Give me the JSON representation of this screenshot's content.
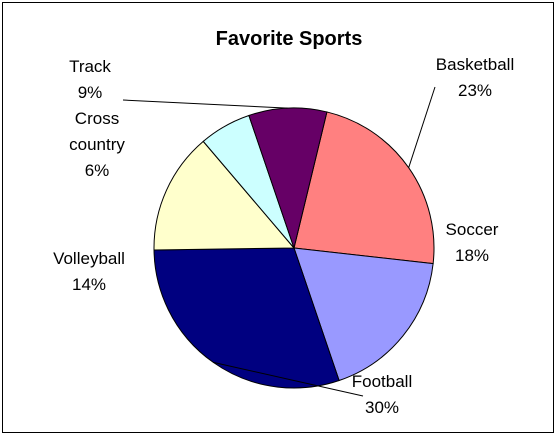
{
  "chart_data": {
    "type": "pie",
    "title": "Favorite Sports",
    "slices": [
      {
        "label": "Basketball",
        "value": 23,
        "display": "23%",
        "color": "#FF8080"
      },
      {
        "label": "Soccer",
        "value": 18,
        "display": "18%",
        "color": "#9999FF"
      },
      {
        "label": "Football",
        "value": 30,
        "display": "30%",
        "color": "#000080"
      },
      {
        "label": "Volleyball",
        "value": 14,
        "display": "14%",
        "color": "#FFFFCC"
      },
      {
        "label": "Cross country",
        "value": 6,
        "display": "6%",
        "color": "#CCFFFF"
      },
      {
        "label": "Track",
        "value": 9,
        "display": "9%",
        "color": "#660066"
      }
    ],
    "legend": "none"
  }
}
